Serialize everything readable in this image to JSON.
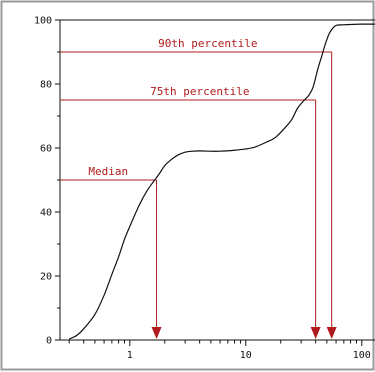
{
  "chart_data": {
    "type": "line",
    "title": "",
    "xlabel": "",
    "ylabel": "",
    "x_scale": "log",
    "xlim": [
      0.25,
      130
    ],
    "ylim": [
      0,
      100
    ],
    "grid": false,
    "legend": "none",
    "y_ticks": [
      {
        "value": 0,
        "label": "0"
      },
      {
        "value": 20,
        "label": "20"
      },
      {
        "value": 40,
        "label": "40"
      },
      {
        "value": 60,
        "label": "60"
      },
      {
        "value": 80,
        "label": "80"
      },
      {
        "value": 100,
        "label": "100"
      }
    ],
    "x_ticks": [
      {
        "value": 1,
        "label": "1"
      },
      {
        "value": 10,
        "label": "10"
      },
      {
        "value": 100,
        "label": "100"
      }
    ],
    "series": [
      {
        "x": [
          0.3,
          0.35,
          0.4,
          0.5,
          0.6,
          0.7,
          0.8,
          0.9,
          1.0,
          1.2,
          1.4,
          1.6,
          1.8,
          2.0,
          2.3,
          2.6,
          3.0,
          3.5,
          4,
          5,
          6,
          8,
          10,
          12,
          15,
          18,
          22,
          25,
          28,
          32,
          35,
          38,
          42,
          45,
          48,
          52,
          55,
          60,
          70,
          80,
          100,
          120,
          130
        ],
        "y": [
          0.3,
          1.5,
          3.5,
          8,
          14,
          20.5,
          26,
          31.5,
          35.5,
          42,
          46.5,
          49.5,
          52,
          54.5,
          56.5,
          57.8,
          58.7,
          59.0,
          59.1,
          59.0,
          59.0,
          59.3,
          59.7,
          60.3,
          61.8,
          63.3,
          66.5,
          69,
          72.5,
          75,
          76.5,
          79,
          85,
          88.5,
          92,
          95.5,
          97,
          98.3,
          98.5,
          98.6,
          98.7,
          98.7,
          98.7
        ]
      }
    ],
    "annotations": [
      {
        "label": "Median",
        "y": 50,
        "x": 1.7
      },
      {
        "label": "75th percentile",
        "y": 75,
        "x": 40
      },
      {
        "label": "90th percentile",
        "y": 90,
        "x": 55
      }
    ],
    "colors": {
      "curve": "#111111",
      "annotation": "#b01c1c",
      "axis": "#111111",
      "frame": "#9a9a9a",
      "background": "#ffffff"
    }
  }
}
